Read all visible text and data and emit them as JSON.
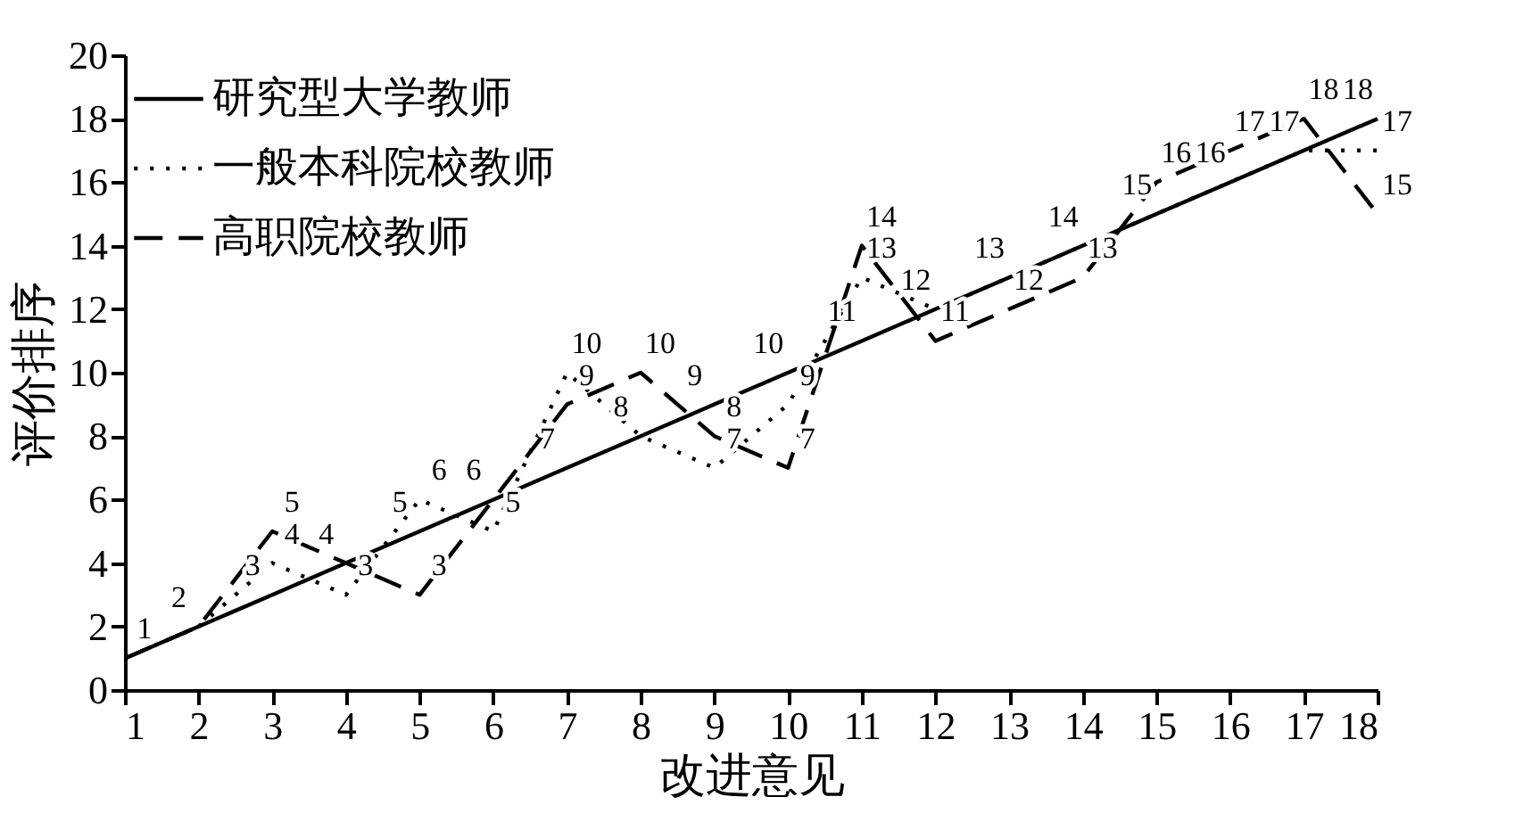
{
  "chart_data": {
    "type": "line",
    "xlabel": "改进意见",
    "ylabel": "评价排序",
    "x": [
      1,
      2,
      3,
      4,
      5,
      6,
      7,
      8,
      9,
      10,
      11,
      12,
      13,
      14,
      15,
      16,
      17,
      18
    ],
    "xlim": [
      1,
      18
    ],
    "xticks": [
      1,
      2,
      3,
      4,
      5,
      6,
      7,
      8,
      9,
      10,
      11,
      12,
      13,
      14,
      15,
      16,
      17,
      18
    ],
    "ylim": [
      0,
      20
    ],
    "yticks": [
      0,
      2,
      4,
      6,
      8,
      10,
      12,
      14,
      16,
      18,
      20
    ],
    "grid": false,
    "legend": "top left",
    "marker": "none",
    "series": [
      {
        "name": "研究型大学教师",
        "color": "#000000",
        "line_style": "solid",
        "values": [
          1,
          2,
          3,
          4,
          5,
          6,
          7,
          8,
          9,
          10,
          11,
          12,
          13,
          14,
          15,
          16,
          17,
          18
        ],
        "value_labels": [
          "1",
          "2",
          "3",
          "4",
          "5",
          "6",
          "7",
          "8",
          "9",
          "10",
          "11",
          "12",
          "13",
          "14",
          "15",
          "16",
          "17",
          "18"
        ]
      },
      {
        "name": "一般本科院校教师",
        "color": "#000000",
        "line_style": "dotted",
        "values": [
          1,
          2,
          4,
          3,
          6,
          5,
          10,
          8,
          7,
          9,
          13,
          12,
          13,
          14,
          15,
          16,
          17,
          17
        ],
        "value_labels": [
          null,
          null,
          "4",
          "3",
          "6",
          "5",
          "10",
          null,
          "7",
          "9",
          "13",
          null,
          null,
          null,
          null,
          null,
          null,
          "17"
        ]
      },
      {
        "name": "高职院校教师",
        "color": "#000000",
        "line_style": "dashed",
        "values": [
          1,
          2,
          5,
          4,
          3,
          6,
          9,
          10,
          8,
          7,
          14,
          11,
          12,
          13,
          16,
          17,
          18,
          15
        ],
        "value_labels": [
          null,
          null,
          "5",
          null,
          "3",
          null,
          "9",
          "10",
          "8",
          "7",
          "14",
          "11",
          "12",
          "13",
          "16",
          "17",
          "18",
          "15"
        ]
      }
    ]
  }
}
